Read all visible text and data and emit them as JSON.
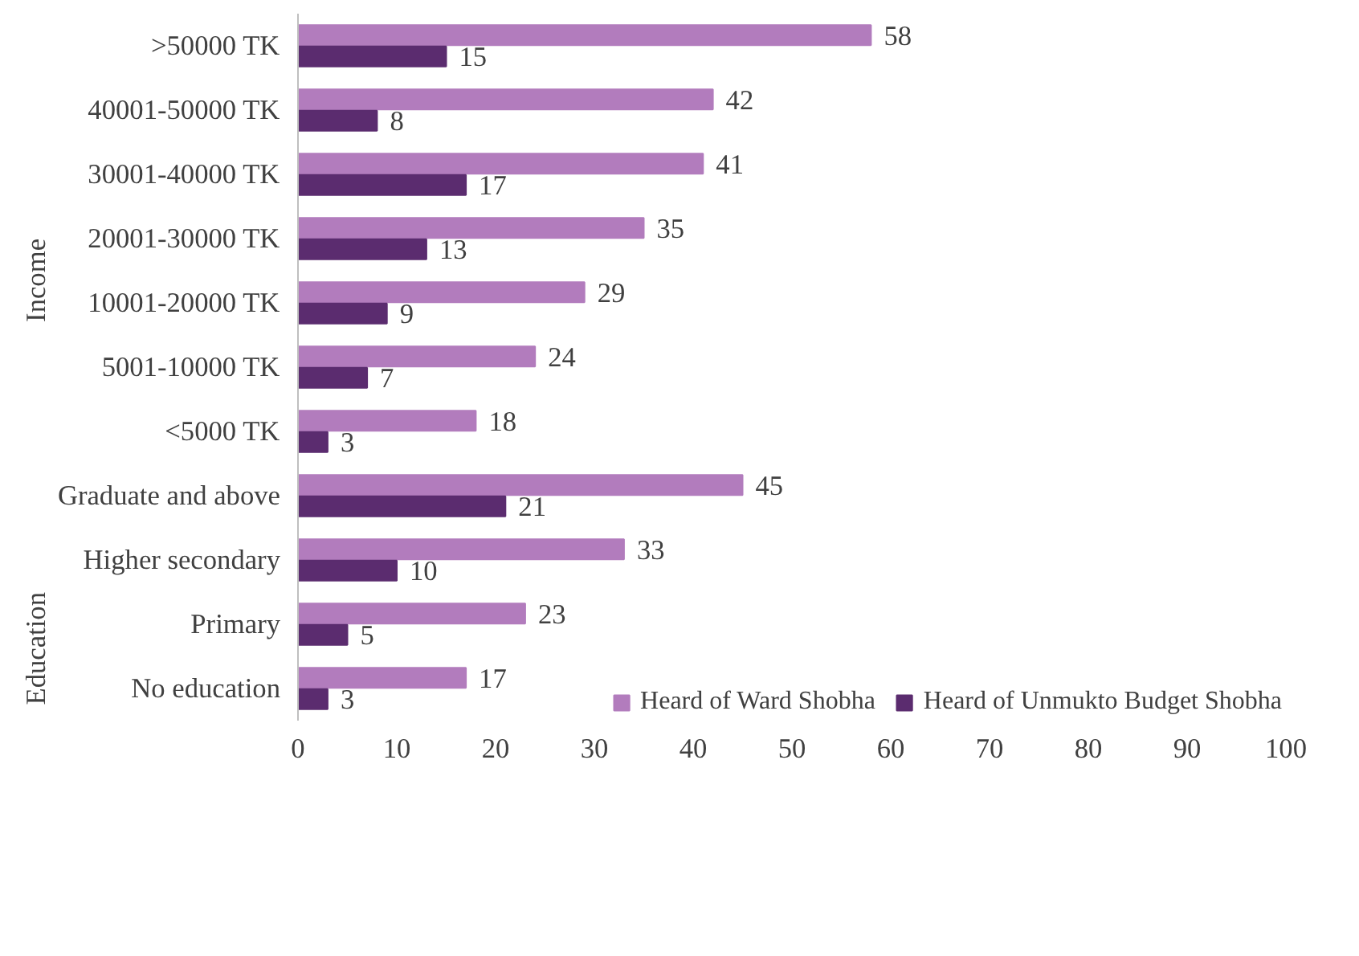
{
  "chart_data": {
    "type": "bar",
    "orientation": "horizontal",
    "categories": [
      ">50000 TK",
      "40001-50000 TK",
      "30001-40000 TK",
      "20001-30000 TK",
      "10001-20000 TK",
      "5001-10000 TK",
      "<5000 TK",
      "Graduate and above",
      "Higher secondary",
      "Primary",
      "No education"
    ],
    "series": [
      {
        "name": "Heard of Ward Shobha",
        "color": "#b27cbd",
        "values": [
          58,
          42,
          41,
          35,
          29,
          24,
          18,
          45,
          33,
          23,
          17
        ]
      },
      {
        "name": "Heard of Unmukto Budget Shobha",
        "color": "#5b2c6f",
        "values": [
          15,
          8,
          17,
          13,
          9,
          7,
          3,
          21,
          10,
          5,
          3
        ]
      }
    ],
    "xlim": [
      0,
      100
    ],
    "xticks": [
      0,
      10,
      20,
      30,
      40,
      50,
      60,
      70,
      80,
      90,
      100
    ],
    "data_labels": true,
    "grid": false,
    "legend": "bottom right",
    "annotations": [
      "Income",
      "Education"
    ]
  }
}
